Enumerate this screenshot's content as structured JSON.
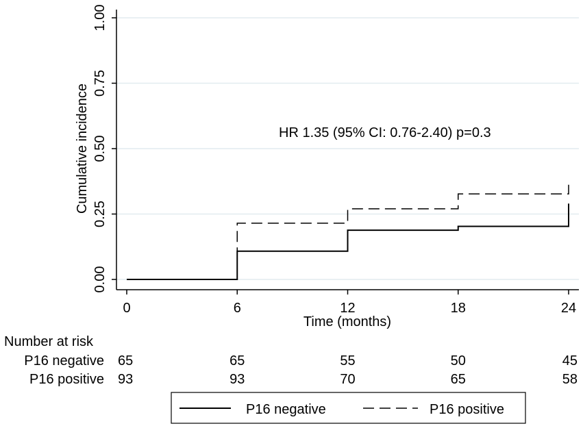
{
  "chart_data": {
    "type": "line",
    "subtype": "step",
    "xlabel": "Time (months)",
    "ylabel": "Cumulative incidence",
    "xlim": [
      0,
      24
    ],
    "ylim": [
      0,
      1
    ],
    "x_ticks": [
      0,
      6,
      12,
      18,
      24
    ],
    "x_tick_labels": [
      "0",
      "6",
      "12",
      "18",
      "24"
    ],
    "y_ticks": [
      0,
      0.25,
      0.5,
      0.75,
      1
    ],
    "y_tick_labels": [
      "0.00",
      "0.25",
      "0.50",
      "0.75",
      "1.00"
    ],
    "grid": true,
    "annotation": "HR 1.35 (95% CI: 0.76-2.40) p=0.3",
    "series": [
      {
        "name": "P16 negative",
        "style": "solid",
        "color": "#000000",
        "x": [
          0,
          6,
          12,
          18,
          24
        ],
        "y": [
          0,
          0.108,
          0.188,
          0.203,
          0.29
        ]
      },
      {
        "name": "P16 positive",
        "style": "dashed",
        "color": "#000000",
        "x": [
          0,
          6,
          12,
          18,
          24
        ],
        "y": [
          0,
          0.215,
          0.27,
          0.327,
          0.362
        ]
      }
    ],
    "risk_table": {
      "title": "Number at risk",
      "rows": [
        {
          "label": "P16 negative",
          "values": [
            "65",
            "65",
            "55",
            "50",
            "45"
          ]
        },
        {
          "label": "P16 positive",
          "values": [
            "93",
            "93",
            "70",
            "65",
            "58"
          ]
        }
      ]
    },
    "legend": {
      "position": "bottom",
      "entries": [
        "P16 negative",
        "P16 positive"
      ]
    },
    "colors": {
      "grid": "#e2ecef",
      "axis": "#000000",
      "line": "#000000"
    }
  }
}
